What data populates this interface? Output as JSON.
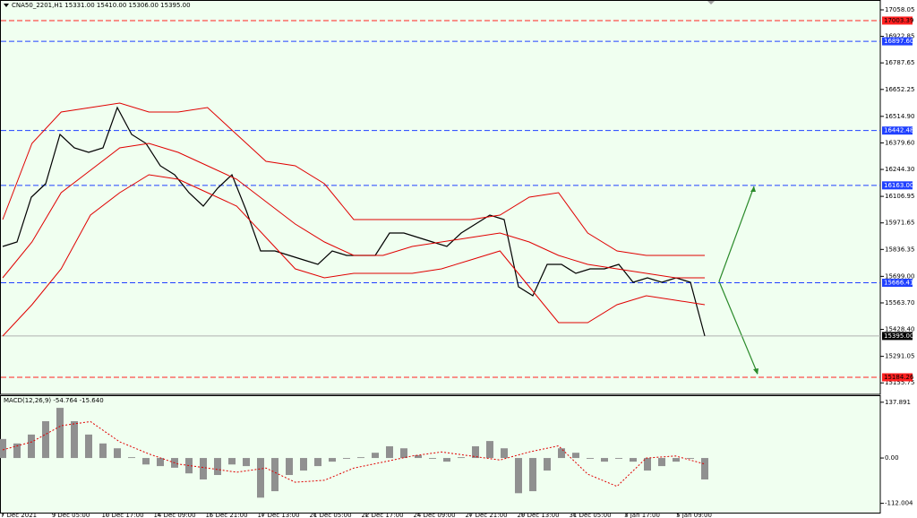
{
  "chart_data": {
    "type": "line",
    "title": "CNA50_2201,H1  15331.00 15410.00 15306.00 15395.00",
    "ylim": [
      15097.4,
      17108.3
    ],
    "yticks": [
      17058.05,
      16922.85,
      16787.65,
      16652.25,
      {
        "value": 16514.9,
        "label": "16514.90"
      },
      {
        "value": 16379.6,
        "label": "16379.60"
      },
      {
        "value": 16244.3,
        "label": "16244.30"
      },
      16106.95,
      15971.65,
      15836.35,
      {
        "value": 15699,
        "label": "15699.00"
      },
      {
        "value": 15563.7,
        "label": "15563.70"
      },
      {
        "value": 15428.4,
        "label": "15428.40"
      },
      15291.05,
      15155.75
    ],
    "date_labels": [
      "7 Dec 2021",
      "9 Dec 05:00",
      "10 Dec 17:00",
      "14 Dec 09:00",
      "15 Dec 21:00",
      "17 Dec 13:00",
      "21 Dec 05:00",
      "22 Dec 17:00",
      "24 Dec 09:00",
      "27 Dec 21:00",
      "29 Dec 13:00",
      "31 Dec 05:00",
      "3 Jan 17:00",
      "5 Jan 09:00"
    ],
    "levels": [
      {
        "value": 17003.39,
        "color": "#ff2020",
        "style": "dashed"
      },
      {
        "value": 16897.6,
        "label": "16897.60",
        "color": "#2040ff",
        "style": "dashed"
      },
      {
        "value": 16442.48,
        "color": "#2040ff",
        "style": "dashed"
      },
      {
        "value": 16163,
        "label": "16163.00",
        "color": "#2040ff",
        "style": "dashed"
      },
      {
        "value": 15666.41,
        "color": "#2040ff",
        "style": "dashed"
      },
      {
        "value": 15395,
        "label": "15395.00",
        "color": "#000000",
        "style": "solid"
      },
      {
        "value": 15184.26,
        "color": "#ff2020",
        "style": "dashed"
      }
    ],
    "series": [
      {
        "name": "Price",
        "color": "#000000",
        "values": [
          15851.6,
          15874.4,
          16102.9,
          16171.4,
          16422.8,
          16354.2,
          16331.4,
          16354.2,
          16559.9,
          16422.8,
          16377.1,
          16262.8,
          16217.1,
          16125.7,
          16057.2,
          16148.6,
          16217.1,
          16034.3,
          15828.7,
          15828.7,
          15805.8,
          15783.0,
          15760.2,
          15828.7,
          15805.8,
          15805.8,
          15805.8,
          15920.1,
          15920.1,
          15897.2,
          15874.4,
          15851.6,
          15920.1,
          15965.8,
          16011.5,
          15988.6,
          15645.9,
          15600.2,
          15760.2,
          15760.2,
          15714.4,
          15737.3,
          15737.3,
          15760.2,
          15668.7,
          15691.6,
          15668.7,
          15691.6,
          15668.7,
          15395
        ]
      },
      {
        "name": "Upper",
        "color": "#e00000",
        "values": [
          15988.6,
          16377.1,
          16537.1,
          16559.9,
          16582.8,
          16537.1,
          16537.1,
          16559.9,
          16422.8,
          16285.7,
          16262.8,
          16171.4,
          15988.6,
          15988.6,
          15988.6,
          15988.6,
          15988.6,
          16011.5,
          16102.9,
          16125.7,
          15920.1,
          15828.7,
          15805.8,
          15805.8,
          15805.8
        ]
      },
      {
        "name": "Middle",
        "color": "#e00000",
        "values": [
          15691.6,
          15874.4,
          16125.7,
          16240.0,
          16354.2,
          16377.1,
          16331.4,
          16262.8,
          16194.3,
          16080.1,
          15965.8,
          15874.4,
          15805.8,
          15805.8,
          15851.6,
          15874.4,
          15897.2,
          15920.1,
          15874.4,
          15805.8,
          15760.2,
          15737.3,
          15714.4,
          15691.6,
          15691.6
        ]
      },
      {
        "name": "Lower",
        "color": "#e00000",
        "values": [
          15394.6,
          15554.5,
          15737.3,
          16011.5,
          16125.7,
          16217.1,
          16194.3,
          16125.7,
          16057.2,
          15897.2,
          15737.3,
          15691.6,
          15714.4,
          15714.4,
          15714.4,
          15737.3,
          15783.0,
          15828.7,
          15645.9,
          15463.2,
          15463.2,
          15554.5,
          15600.2,
          15577.4,
          15554.5
        ]
      }
    ],
    "macd": {
      "label": "MACD(12,26,9) -54.764 -15.640",
      "ylim": [
        -135,
        153
      ],
      "yticks": [
        137.891,
        {
          "value": 0,
          "label": "0.00"
        },
        -112.004
      ],
      "histogram": {
        "color": "#909090",
        "values": [
          47,
          36,
          58,
          91,
          124,
          91,
          58,
          36,
          24,
          2,
          -16,
          -20,
          -24,
          -38,
          -53,
          -42,
          -16,
          -20,
          -98,
          -82,
          -42,
          -31,
          -20,
          -9,
          -2,
          2,
          13,
          29,
          24,
          7,
          -2,
          -9,
          2,
          29,
          42,
          24,
          -87,
          -82,
          -31,
          24,
          13,
          -2,
          -9,
          -2,
          -9,
          -31,
          -20,
          -9,
          -2,
          -53
        ]
      },
      "signal": {
        "color": "#e00000",
        "values": [
          20,
          40,
          80,
          90,
          40,
          10,
          -15,
          -25,
          -35,
          -25,
          -60,
          -55,
          -25,
          -10,
          5,
          15,
          5,
          -5,
          15,
          30,
          -40,
          -70,
          0,
          5,
          -15
        ]
      }
    }
  }
}
